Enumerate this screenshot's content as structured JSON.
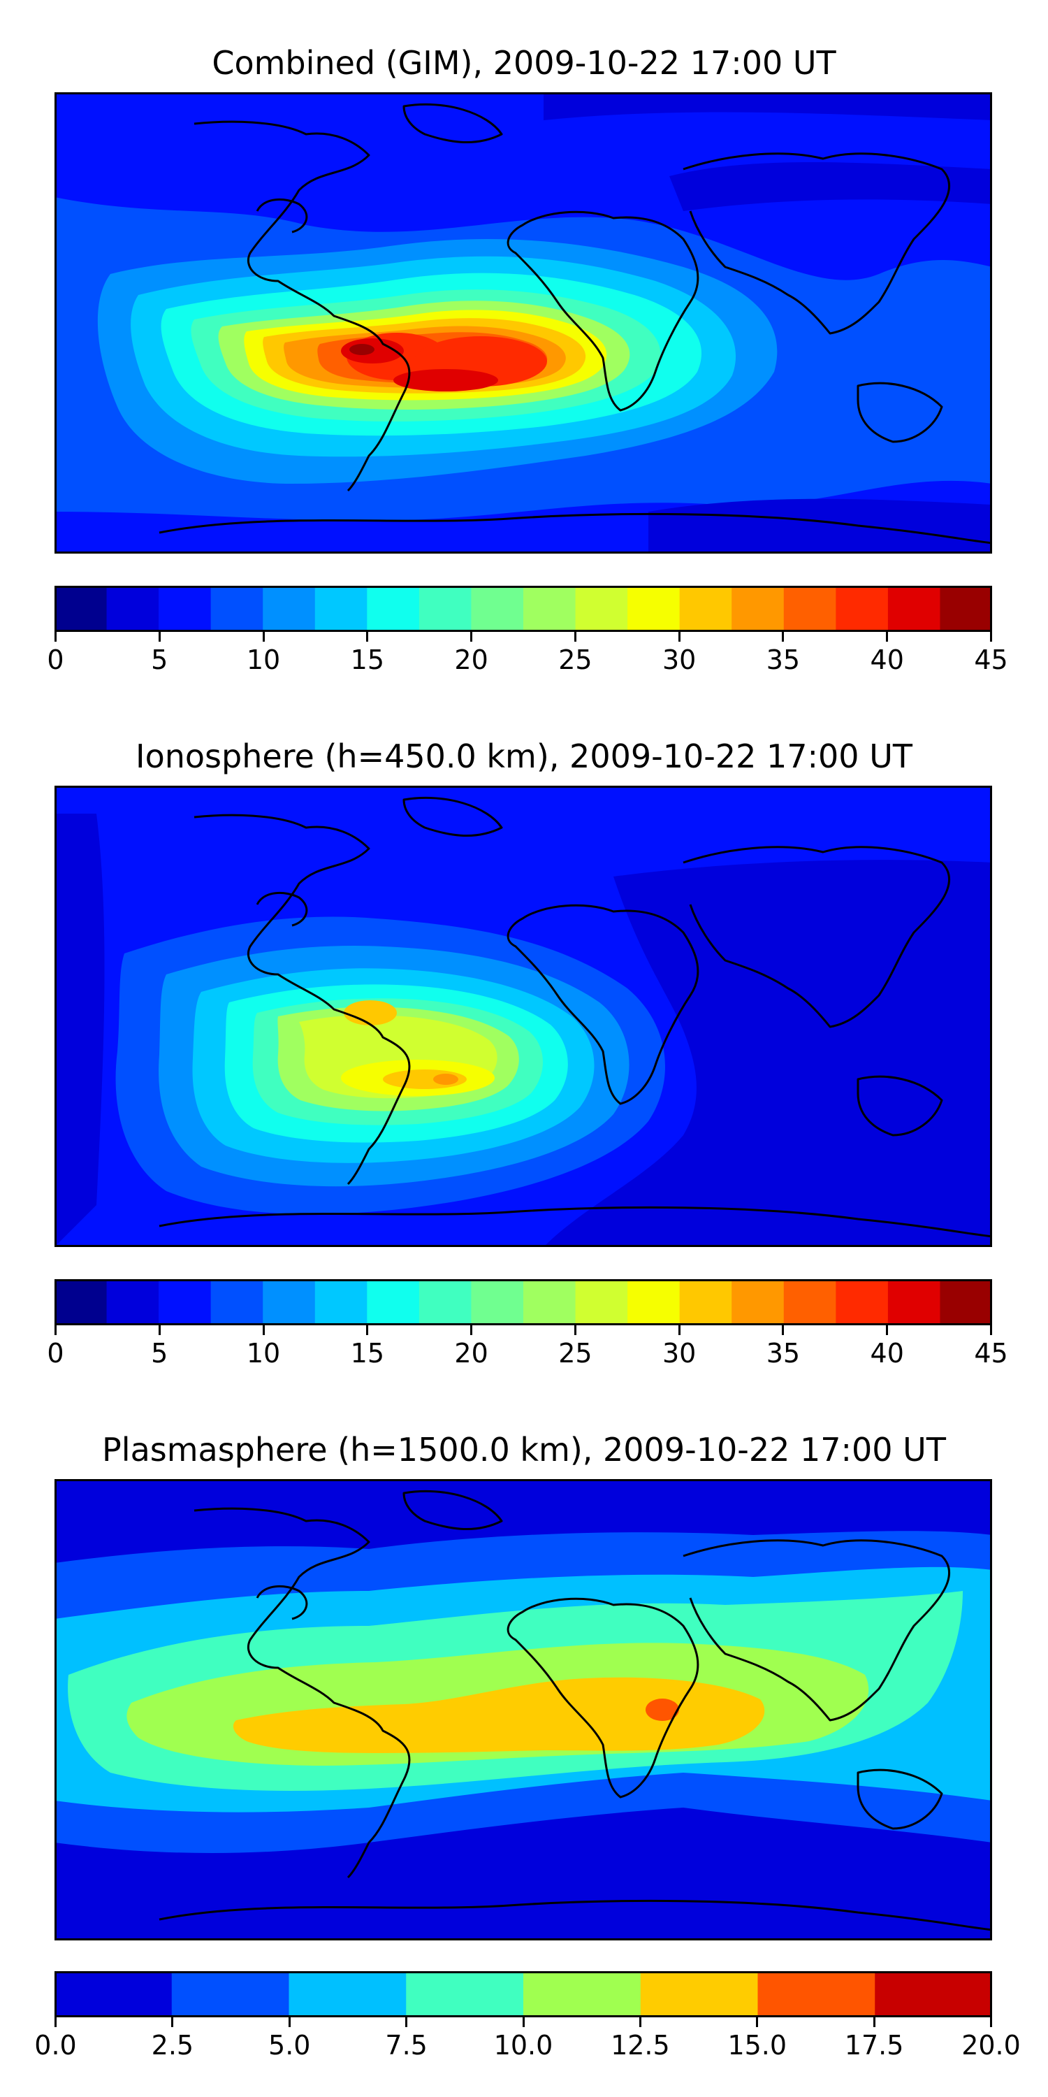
{
  "colors": {
    "tec_levels": [
      "#00008f",
      "#0000dc",
      "#0010ff",
      "#0050ff",
      "#0090ff",
      "#00c8ff",
      "#10ffee",
      "#40ffc0",
      "#70ff90",
      "#a0ff60",
      "#d0ff30",
      "#f6ff00",
      "#ffc800",
      "#ff9800",
      "#ff6000",
      "#ff2a00",
      "#e00000",
      "#990000"
    ],
    "plasma_levels": [
      "#0000dc",
      "#0050ff",
      "#00c0ff",
      "#40ffc0",
      "#a0ff50",
      "#ffcc00",
      "#ff5500",
      "#c80000"
    ],
    "coastline": "#000000"
  },
  "panels": [
    {
      "title": "Combined (GIM), 2009-10-22 17:00 UT",
      "colorbar": {
        "min": 0,
        "max": 45,
        "levels": 18,
        "tick_labels": [
          "0",
          "5",
          "10",
          "15",
          "20",
          "25",
          "30",
          "35",
          "40",
          "45"
        ]
      }
    },
    {
      "title": "Ionosphere  (h=450.0 km), 2009-10-22 17:00 UT",
      "colorbar": {
        "min": 0,
        "max": 45,
        "levels": 18,
        "tick_labels": [
          "0",
          "5",
          "10",
          "15",
          "20",
          "25",
          "30",
          "35",
          "40",
          "45"
        ]
      }
    },
    {
      "title": "Plasmasphere (h=1500.0 km), 2009-10-22 17:00 UT",
      "colorbar": {
        "min": 0.0,
        "max": 20.0,
        "levels": 8,
        "tick_labels": [
          "0.0",
          "2.5",
          "5.0",
          "7.5",
          "10.0",
          "12.5",
          "15.0",
          "17.5",
          "20.0"
        ]
      }
    }
  ]
}
